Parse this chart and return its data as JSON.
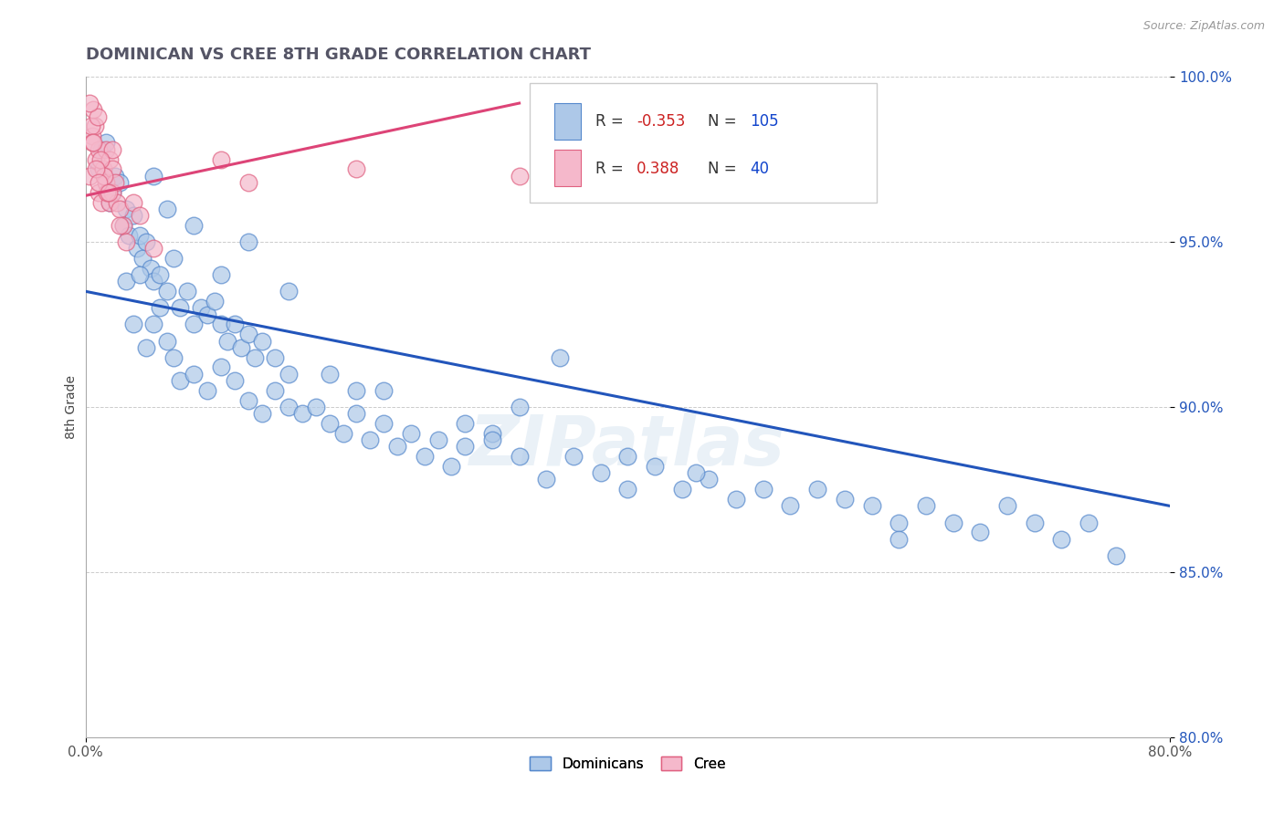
{
  "title": "DOMINICAN VS CREE 8TH GRADE CORRELATION CHART",
  "source": "Source: ZipAtlas.com",
  "ylabel": "8th Grade",
  "xlim": [
    0.0,
    80.0
  ],
  "ylim": [
    80.0,
    100.0
  ],
  "ytick_labels": [
    "80.0%",
    "85.0%",
    "90.0%",
    "95.0%",
    "100.0%"
  ],
  "ytick_values": [
    80.0,
    85.0,
    90.0,
    95.0,
    100.0
  ],
  "xtick_labels": [
    "0.0%",
    "80.0%"
  ],
  "xtick_values": [
    0.0,
    80.0
  ],
  "dominican_color": "#adc8e8",
  "cree_color": "#f5b8cb",
  "dominican_edge": "#5588cc",
  "cree_edge": "#e06080",
  "trend_blue": "#2255bb",
  "trend_pink": "#dd4477",
  "legend_R1": "-0.353",
  "legend_N1": "105",
  "legend_R2": "0.388",
  "legend_N2": "40",
  "R_color": "#cc2222",
  "N_color": "#1144cc",
  "watermark": "ZIPatlas",
  "blue_trend_x0": 0.0,
  "blue_trend_y0": 93.5,
  "blue_trend_x1": 80.0,
  "blue_trend_y1": 87.0,
  "pink_trend_x0": 0.0,
  "pink_trend_y0": 96.4,
  "pink_trend_x1": 32.0,
  "pink_trend_y1": 99.2,
  "dominican_x": [
    1.0,
    1.2,
    1.5,
    1.8,
    2.0,
    2.2,
    2.5,
    2.8,
    3.0,
    3.2,
    3.5,
    3.8,
    4.0,
    4.2,
    4.5,
    4.8,
    5.0,
    5.5,
    6.0,
    6.5,
    7.0,
    7.5,
    8.0,
    8.5,
    9.0,
    9.5,
    10.0,
    10.5,
    11.0,
    11.5,
    12.0,
    12.5,
    13.0,
    14.0,
    15.0,
    3.0,
    3.5,
    4.0,
    4.5,
    5.0,
    5.5,
    6.0,
    6.5,
    7.0,
    8.0,
    9.0,
    10.0,
    11.0,
    12.0,
    13.0,
    14.0,
    15.0,
    16.0,
    17.0,
    18.0,
    19.0,
    20.0,
    21.0,
    22.0,
    23.0,
    24.0,
    25.0,
    26.0,
    27.0,
    28.0,
    30.0,
    32.0,
    34.0,
    36.0,
    38.0,
    40.0,
    42.0,
    44.0,
    46.0,
    48.0,
    50.0,
    52.0,
    54.0,
    56.0,
    58.0,
    60.0,
    62.0,
    64.0,
    66.0,
    68.0,
    70.0,
    72.0,
    74.0,
    76.0,
    60.0,
    18.0,
    22.0,
    35.0,
    40.0,
    45.0,
    28.0,
    32.0,
    20.0,
    15.0,
    30.0,
    10.0,
    12.0,
    8.0,
    6.0,
    5.0
  ],
  "dominican_y": [
    97.2,
    97.8,
    98.0,
    96.2,
    96.5,
    97.0,
    96.8,
    95.5,
    96.0,
    95.2,
    95.8,
    94.8,
    95.2,
    94.5,
    95.0,
    94.2,
    93.8,
    94.0,
    93.5,
    94.5,
    93.0,
    93.5,
    92.5,
    93.0,
    92.8,
    93.2,
    92.5,
    92.0,
    92.5,
    91.8,
    92.2,
    91.5,
    92.0,
    91.5,
    91.0,
    93.8,
    92.5,
    94.0,
    91.8,
    92.5,
    93.0,
    92.0,
    91.5,
    90.8,
    91.0,
    90.5,
    91.2,
    90.8,
    90.2,
    89.8,
    90.5,
    90.0,
    89.8,
    90.0,
    89.5,
    89.2,
    89.8,
    89.0,
    89.5,
    88.8,
    89.2,
    88.5,
    89.0,
    88.2,
    88.8,
    89.2,
    88.5,
    87.8,
    88.5,
    88.0,
    87.5,
    88.2,
    87.5,
    87.8,
    87.2,
    87.5,
    87.0,
    87.5,
    87.2,
    87.0,
    86.5,
    87.0,
    86.5,
    86.2,
    87.0,
    86.5,
    86.0,
    86.5,
    85.5,
    86.0,
    91.0,
    90.5,
    91.5,
    88.5,
    88.0,
    89.5,
    90.0,
    90.5,
    93.5,
    89.0,
    94.0,
    95.0,
    95.5,
    96.0,
    97.0
  ],
  "cree_x": [
    0.3,
    0.5,
    0.7,
    0.8,
    1.0,
    1.0,
    1.2,
    1.3,
    1.5,
    1.5,
    1.8,
    1.8,
    2.0,
    2.0,
    2.0,
    2.2,
    2.3,
    2.5,
    2.8,
    3.0,
    0.4,
    0.6,
    0.9,
    1.1,
    1.4,
    1.6,
    0.3,
    0.5,
    0.8,
    1.0,
    10.0,
    12.0,
    20.0,
    32.0,
    3.5,
    4.0,
    5.0,
    2.5,
    1.7,
    0.6
  ],
  "cree_y": [
    97.0,
    98.2,
    98.5,
    97.5,
    97.8,
    96.5,
    96.2,
    97.2,
    97.8,
    96.8,
    96.2,
    97.5,
    97.2,
    96.5,
    97.8,
    96.8,
    96.2,
    96.0,
    95.5,
    95.0,
    98.5,
    99.0,
    98.8,
    97.5,
    97.0,
    96.5,
    99.2,
    98.0,
    97.2,
    96.8,
    97.5,
    96.8,
    97.2,
    97.0,
    96.2,
    95.8,
    94.8,
    95.5,
    96.5,
    98.0
  ]
}
